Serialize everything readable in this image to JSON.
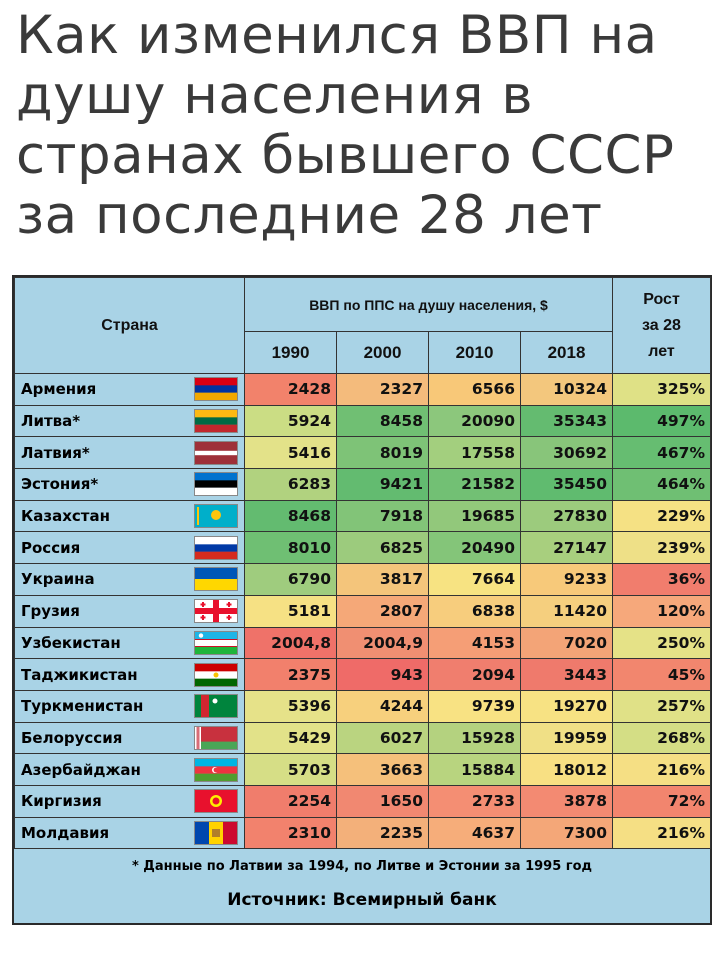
{
  "title": "Как изменился ВВП на душу населения в странах бывшего СССР за последние 28 лет",
  "chart_data": {
    "type": "table",
    "header": {
      "country": "Страна",
      "gdp": "ВВП по ППС на душу населения, $",
      "years": [
        "1990",
        "2000",
        "2010",
        "2018"
      ],
      "growth_lines": [
        "Рост",
        "за 28",
        "лет"
      ]
    },
    "rows": [
      {
        "country": "Армения",
        "values": [
          "2428",
          "2327",
          "6566",
          "10324"
        ],
        "growth": "325%",
        "flag": "armenia-flag-icon",
        "colors": [
          "#f2826b",
          "#f4bb7c",
          "#f8c878",
          "#f3c77d",
          "#dfe186"
        ]
      },
      {
        "country": "Литва*",
        "values": [
          "5924",
          "8458",
          "20090",
          "35343"
        ],
        "growth": "497%",
        "flag": "lithuania-flag-icon",
        "colors": [
          "#cbdd84",
          "#70bf73",
          "#8cc77c",
          "#64bb70",
          "#5cba6d"
        ]
      },
      {
        "country": "Латвия*",
        "values": [
          "5416",
          "8019",
          "17558",
          "30692"
        ],
        "growth": "467%",
        "flag": "latvia-flag-icon",
        "colors": [
          "#e3e289",
          "#7ec377",
          "#a3cf7e",
          "#88c57a",
          "#66bd71"
        ]
      },
      {
        "country": "Эстония*",
        "values": [
          "6283",
          "9421",
          "21582",
          "35450"
        ],
        "growth": "464%",
        "flag": "estonia-flag-icon",
        "colors": [
          "#b1d27f",
          "#63bb70",
          "#72c074",
          "#60bb6f",
          "#6fbf73"
        ]
      },
      {
        "country": "Казахстан",
        "values": [
          "8468",
          "7918",
          "19685",
          "27830"
        ],
        "growth": "229%",
        "flag": "kazakhstan-flag-icon",
        "colors": [
          "#63bb70",
          "#82c478",
          "#92c87b",
          "#9ccb7d",
          "#f5e184"
        ]
      },
      {
        "country": "Россия",
        "values": [
          "8010",
          "6825",
          "20490",
          "27147"
        ],
        "growth": "239%",
        "flag": "russia-flag-icon",
        "colors": [
          "#6fbf73",
          "#9ccb7d",
          "#84c579",
          "#a8cf7e",
          "#eee087"
        ]
      },
      {
        "country": "Украина",
        "values": [
          "6790",
          "3817",
          "7664",
          "9233"
        ],
        "growth": "36%",
        "flag": "ukraine-flag-icon",
        "colors": [
          "#9fcc7e",
          "#f4c57b",
          "#f7e382",
          "#f7c97a",
          "#f17d6d"
        ]
      },
      {
        "country": "Грузия",
        "values": [
          "5181",
          "2807",
          "6838",
          "11420"
        ],
        "growth": "120%",
        "flag": "georgia-flag-icon",
        "colors": [
          "#f6e184",
          "#f5a878",
          "#f7cd7d",
          "#f5cf7e",
          "#f6a87b"
        ]
      },
      {
        "country": "Узбекистан",
        "values": [
          "2004,8",
          "2004,9",
          "4153",
          "7020"
        ],
        "growth": "250%",
        "flag": "uzbekistan-flag-icon",
        "colors": [
          "#ef7269",
          "#f08f72",
          "#f59e76",
          "#f3a477",
          "#e5e287"
        ]
      },
      {
        "country": "Таджикистан",
        "values": [
          "2375",
          "943",
          "2094",
          "3443"
        ],
        "growth": "45%",
        "flag": "tajikistan-flag-icon",
        "colors": [
          "#f2806c",
          "#ef6b68",
          "#f07e6e",
          "#ef7a6c",
          "#f2866e"
        ]
      },
      {
        "country": "Туркменистан",
        "values": [
          "5396",
          "4244",
          "9739",
          "19270"
        ],
        "growth": "257%",
        "flag": "turkmenistan-flag-icon",
        "colors": [
          "#e6e289",
          "#f7d07d",
          "#f8e283",
          "#f7e283",
          "#e0e187"
        ]
      },
      {
        "country": "Белоруссия",
        "values": [
          "5429",
          "6027",
          "15928",
          "19959"
        ],
        "growth": "268%",
        "flag": "belarus-flag-icon",
        "colors": [
          "#e2e289",
          "#bad480",
          "#b4d27f",
          "#f0e086",
          "#d4de85"
        ]
      },
      {
        "country": "Азербайджан",
        "values": [
          "5703",
          "3663",
          "15884",
          "18012"
        ],
        "growth": "216%",
        "flag": "azerbaijan-flag-icon",
        "colors": [
          "#d6de86",
          "#f5c07b",
          "#b8d47f",
          "#f8e083",
          "#f5df84"
        ]
      },
      {
        "country": "Киргизия",
        "values": [
          "2254",
          "1650",
          "2733",
          "3878"
        ],
        "growth": "72%",
        "flag": "kyrgyzstan-flag-icon",
        "colors": [
          "#f07d6c",
          "#f18871",
          "#f48e73",
          "#f38a72",
          "#f2856e"
        ]
      },
      {
        "country": "Молдавия",
        "values": [
          "2310",
          "2235",
          "4637",
          "7300"
        ],
        "growth": "216%",
        "flag": "moldova-flag-icon",
        "colors": [
          "#f2826d",
          "#f3b07a",
          "#f6ad7a",
          "#f4a778",
          "#f5df84"
        ]
      }
    ],
    "footnote": "* Данные по Латвии за 1994, по Литве и Эстонии за 1995 год",
    "source": "Источник: Всемирный банк"
  }
}
